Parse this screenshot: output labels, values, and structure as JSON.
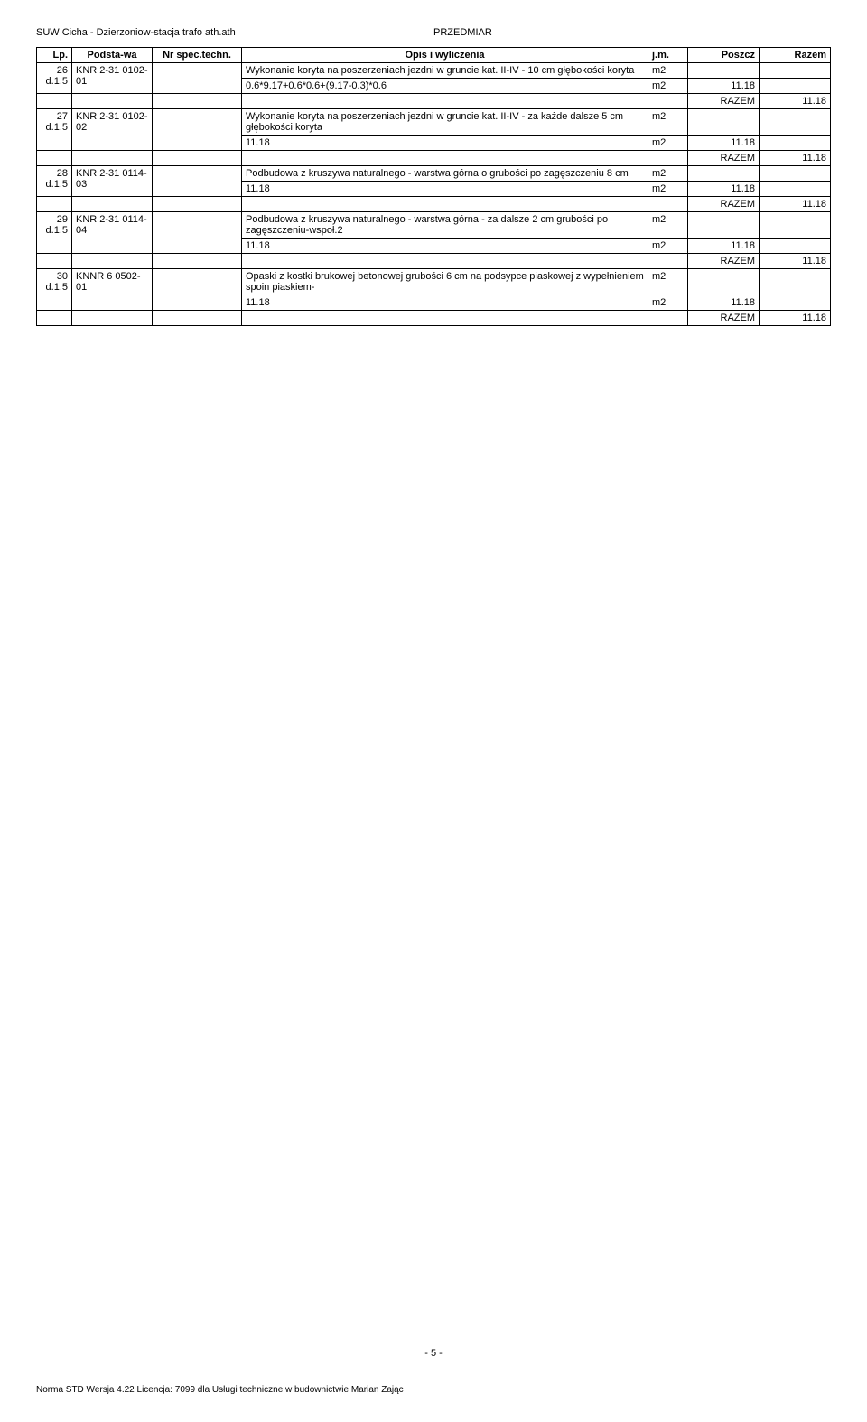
{
  "header": {
    "left": "SUW Cicha - Dzierzoniow-stacja trafo ath.ath",
    "right": "PRZEDMIAR"
  },
  "columns": {
    "lp": "Lp.",
    "podstawa": "Podsta-wa",
    "nrspec": "Nr spec.techn.",
    "opis": "Opis i wyliczenia",
    "jm": "j.m.",
    "poszcz": "Poszcz",
    "razem": "Razem"
  },
  "rows": [
    {
      "lp": "26",
      "d": "d.1.5",
      "pod": "KNR 2-31 0102-01",
      "opis": "Wykonanie koryta na poszerzeniach jezdni w gruncie kat. II-IV - 10 cm głębokości koryta",
      "jm": "m2",
      "calc": "0.6*9.17+0.6*0.6+(9.17-0.3)*0.6",
      "calc_jm": "m2",
      "poszcz": "11.18",
      "razem_label": "RAZEM",
      "razem": "11.18"
    },
    {
      "lp": "27",
      "d": "d.1.5",
      "pod": "KNR 2-31 0102-02",
      "opis": "Wykonanie koryta na poszerzeniach jezdni w gruncie kat. II-IV - za każde dalsze 5 cm głębokości koryta",
      "jm": "m2",
      "calc": "11.18",
      "calc_jm": "m2",
      "poszcz": "11.18",
      "razem_label": "RAZEM",
      "razem": "11.18"
    },
    {
      "lp": "28",
      "d": "d.1.5",
      "pod": "KNR 2-31 0114-03",
      "opis": "Podbudowa z kruszywa naturalnego - warstwa górna o grubości po zagęszczeniu 8 cm",
      "jm": "m2",
      "calc": "11.18",
      "calc_jm": "m2",
      "poszcz": "11.18",
      "razem_label": "RAZEM",
      "razem": "11.18"
    },
    {
      "lp": "29",
      "d": "d.1.5",
      "pod": "KNR 2-31 0114-04",
      "opis": "Podbudowa z kruszywa naturalnego - warstwa górna - za  dalsze 2 cm grubości po zagęszczeniu-wspoł.2",
      "jm": "m2",
      "calc": "11.18",
      "calc_jm": "m2",
      "poszcz": "11.18",
      "razem_label": "RAZEM",
      "razem": "11.18"
    },
    {
      "lp": "30",
      "d": "d.1.5",
      "pod": "KNNR 6 0502-01",
      "opis": "Opaski  z kostki brukowej betonowej  grubości 6 cm na podsypce piaskowej z wypełnieniem spoin piaskiem-",
      "jm": "m2",
      "calc": "11.18",
      "calc_jm": "m2",
      "poszcz": "11.18",
      "razem_label": "RAZEM",
      "razem": "11.18"
    }
  ],
  "page_num": "- 5 -",
  "footer": "Norma STD Wersja 4.22 Licencja: 7099 dla Usługi techniczne w budownictwie Marian Zając"
}
